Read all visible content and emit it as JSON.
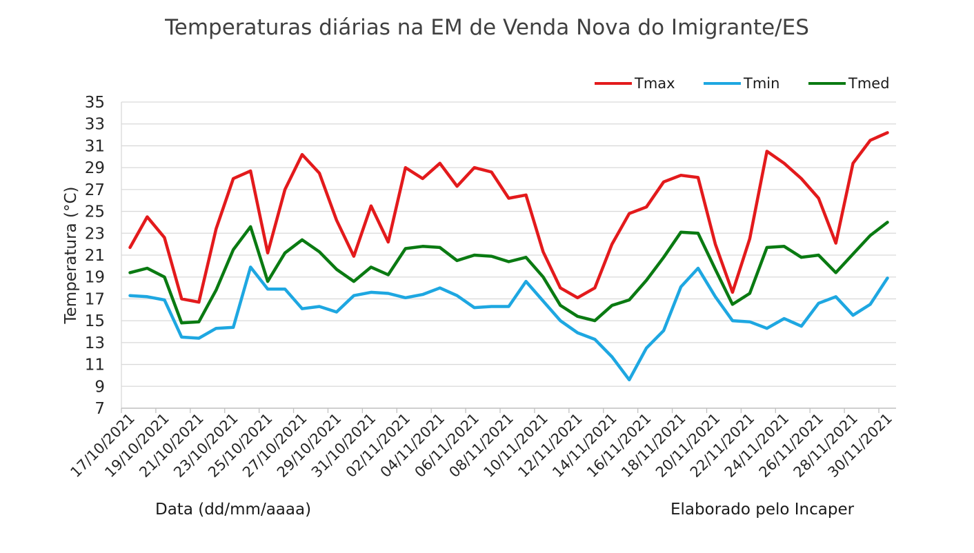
{
  "chart_data": {
    "type": "line",
    "title": "Temperaturas diárias na EM de Venda Nova do Imigrante/ES",
    "xlabel": "Data (dd/mm/aaaa)",
    "ylabel": "Temperatura (°C)",
    "note": "Elaborado pelo Incaper",
    "ylim": [
      7,
      35
    ],
    "yticks": [
      7,
      9,
      11,
      13,
      15,
      17,
      19,
      21,
      23,
      25,
      27,
      29,
      31,
      33,
      35
    ],
    "grid": true,
    "legend_position": "top-right",
    "x": [
      "17/10/2021",
      "18/10/2021",
      "19/10/2021",
      "20/10/2021",
      "21/10/2021",
      "22/10/2021",
      "23/10/2021",
      "24/10/2021",
      "25/10/2021",
      "26/10/2021",
      "27/10/2021",
      "28/10/2021",
      "29/10/2021",
      "30/10/2021",
      "31/10/2021",
      "01/11/2021",
      "02/11/2021",
      "03/11/2021",
      "04/11/2021",
      "05/11/2021",
      "06/11/2021",
      "07/11/2021",
      "08/11/2021",
      "09/11/2021",
      "10/11/2021",
      "11/11/2021",
      "12/11/2021",
      "13/11/2021",
      "14/11/2021",
      "15/11/2021",
      "16/11/2021",
      "17/11/2021",
      "18/11/2021",
      "19/11/2021",
      "20/11/2021",
      "21/11/2021",
      "22/11/2021",
      "23/11/2021",
      "24/11/2021",
      "25/11/2021",
      "26/11/2021",
      "27/11/2021",
      "28/11/2021",
      "29/11/2021",
      "30/11/2021"
    ],
    "x_tick_labels": [
      "17/10/2021",
      "19/10/2021",
      "21/10/2021",
      "23/10/2021",
      "25/10/2021",
      "27/10/2021",
      "29/10/2021",
      "31/10/2021",
      "02/11/2021",
      "04/11/2021",
      "06/11/2021",
      "08/11/2021",
      "10/11/2021",
      "12/11/2021",
      "14/11/2021",
      "16/11/2021",
      "18/11/2021",
      "20/11/2021",
      "22/11/2021",
      "24/11/2021",
      "26/11/2021",
      "28/11/2021",
      "30/11/2021"
    ],
    "series": [
      {
        "name": "Tmax",
        "color": "#e31a1c",
        "values": [
          21.7,
          24.5,
          22.6,
          17.0,
          16.7,
          23.4,
          28.0,
          28.7,
          21.2,
          27.0,
          30.2,
          28.5,
          24.2,
          20.9,
          25.5,
          22.2,
          29.0,
          28.0,
          29.4,
          27.3,
          29.0,
          28.6,
          26.2,
          26.5,
          21.3,
          18.0,
          17.1,
          18.0,
          22.0,
          24.8,
          25.4,
          27.7,
          28.3,
          28.1,
          22.0,
          17.6,
          22.5,
          30.5,
          29.4,
          28.0,
          26.2,
          22.1,
          29.4,
          31.5,
          32.2
        ]
      },
      {
        "name": "Tmin",
        "color": "#1ea7e1",
        "values": [
          17.3,
          17.2,
          16.9,
          13.5,
          13.4,
          14.3,
          14.4,
          19.9,
          17.9,
          17.9,
          16.1,
          16.3,
          15.8,
          17.3,
          17.6,
          17.5,
          17.1,
          17.4,
          18.0,
          17.3,
          16.2,
          16.3,
          16.3,
          18.6,
          16.8,
          15.0,
          13.9,
          13.3,
          11.7,
          9.6,
          12.5,
          14.1,
          18.1,
          19.8,
          17.2,
          15.0,
          14.9,
          14.3,
          15.2,
          14.5,
          16.6,
          17.2,
          15.5,
          16.5,
          18.9
        ]
      },
      {
        "name": "Tmed",
        "color": "#0a7a12",
        "values": [
          19.4,
          19.8,
          19.0,
          14.8,
          14.9,
          17.8,
          21.5,
          23.6,
          18.6,
          21.2,
          22.4,
          21.3,
          19.7,
          18.6,
          19.9,
          19.2,
          21.6,
          21.8,
          21.7,
          20.5,
          21.0,
          20.9,
          20.4,
          20.8,
          19.0,
          16.4,
          15.4,
          15.0,
          16.4,
          16.9,
          18.7,
          20.8,
          23.1,
          23.0,
          19.7,
          16.5,
          17.5,
          21.7,
          21.8,
          20.8,
          21.0,
          19.4,
          21.1,
          22.8,
          24.0
        ]
      }
    ]
  }
}
